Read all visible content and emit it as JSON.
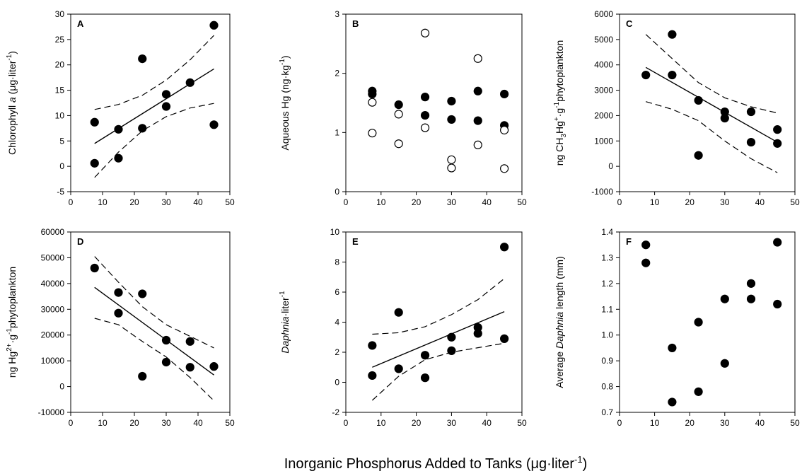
{
  "figure": {
    "xlabel_text": "Inorganic Phosphorus Added to Tanks (μg·liter",
    "xlabel_sup": "-1",
    "xlabel_close": ")"
  },
  "chart_data": [
    {
      "letter": "A",
      "type": "scatter",
      "ylabel": [
        {
          "t": "Chlorophyll "
        },
        {
          "t": "a",
          "italic": true
        },
        {
          "t": " (μg·liter"
        },
        {
          "t": "-1",
          "sup": true
        },
        {
          "t": ")"
        }
      ],
      "xlim": [
        0,
        50
      ],
      "ylim": [
        -5,
        30
      ],
      "xticks": [
        0,
        10,
        20,
        30,
        40,
        50
      ],
      "yticks": [
        -5,
        0,
        5,
        10,
        15,
        20,
        25,
        30
      ],
      "series": [
        {
          "marker": "filled",
          "points": [
            [
              7.5,
              8.7
            ],
            [
              7.5,
              0.6
            ],
            [
              15,
              7.3
            ],
            [
              15,
              1.6
            ],
            [
              22.5,
              21.2
            ],
            [
              22.5,
              7.5
            ],
            [
              30,
              14.2
            ],
            [
              30,
              11.8
            ],
            [
              37.5,
              16.5
            ],
            [
              45,
              27.8
            ],
            [
              45,
              8.2
            ]
          ]
        }
      ],
      "fit": {
        "x": [
          7.5,
          45
        ],
        "y": [
          4.5,
          19.2
        ]
      },
      "ci_upper": {
        "x": [
          7.5,
          15,
          22.5,
          30,
          37.5,
          45
        ],
        "y": [
          11.2,
          12.2,
          14.0,
          17.0,
          21.0,
          25.8
        ]
      },
      "ci_lower": {
        "x": [
          7.5,
          15,
          22.5,
          30,
          37.5,
          45
        ],
        "y": [
          -2.2,
          2.8,
          7.0,
          9.8,
          11.5,
          12.4
        ]
      }
    },
    {
      "letter": "B",
      "type": "scatter",
      "ylabel": [
        {
          "t": "Aqueous Hg (ng·kg"
        },
        {
          "t": "-1",
          "sup": true
        },
        {
          "t": ")"
        }
      ],
      "xlim": [
        0,
        50
      ],
      "ylim": [
        0,
        3
      ],
      "xticks": [
        0,
        10,
        20,
        30,
        40,
        50
      ],
      "yticks": [
        0,
        1,
        2,
        3
      ],
      "series": [
        {
          "marker": "filled",
          "points": [
            [
              7.5,
              1.7
            ],
            [
              7.5,
              1.65
            ],
            [
              15,
              1.47
            ],
            [
              22.5,
              1.6
            ],
            [
              22.5,
              1.29
            ],
            [
              30,
              1.53
            ],
            [
              30,
              1.22
            ],
            [
              37.5,
              1.7
            ],
            [
              37.5,
              1.2
            ],
            [
              45,
              1.65
            ],
            [
              45,
              1.12
            ]
          ]
        },
        {
          "marker": "open",
          "points": [
            [
              7.5,
              1.51
            ],
            [
              7.5,
              0.99
            ],
            [
              15,
              1.31
            ],
            [
              15,
              0.81
            ],
            [
              22.5,
              2.68
            ],
            [
              22.5,
              1.08
            ],
            [
              30,
              0.54
            ],
            [
              30,
              0.4
            ],
            [
              37.5,
              2.25
            ],
            [
              37.5,
              0.79
            ],
            [
              45,
              1.04
            ],
            [
              45,
              0.39
            ]
          ]
        }
      ]
    },
    {
      "letter": "C",
      "type": "scatter",
      "ylabel": [
        {
          "t": "ng CH"
        },
        {
          "t": "3",
          "sub": true
        },
        {
          "t": "Hg"
        },
        {
          "t": "+",
          "sup": true
        },
        {
          "t": "·g"
        },
        {
          "t": "-1",
          "sup": true
        },
        {
          "t": "phytoplankton"
        }
      ],
      "xlim": [
        0,
        50
      ],
      "ylim": [
        -1000,
        6000
      ],
      "xticks": [
        0,
        10,
        20,
        30,
        40,
        50
      ],
      "yticks": [
        -1000,
        0,
        1000,
        2000,
        3000,
        4000,
        5000,
        6000
      ],
      "series": [
        {
          "marker": "filled",
          "points": [
            [
              7.5,
              3600
            ],
            [
              15,
              5200
            ],
            [
              15,
              3600
            ],
            [
              22.5,
              2600
            ],
            [
              22.5,
              430
            ],
            [
              30,
              2150
            ],
            [
              30,
              1900
            ],
            [
              37.5,
              2150
            ],
            [
              37.5,
              950
            ],
            [
              45,
              1450
            ],
            [
              45,
              900
            ]
          ]
        }
      ],
      "fit": {
        "x": [
          7.5,
          45
        ],
        "y": [
          3900,
          950
        ]
      },
      "ci_upper": {
        "x": [
          7.5,
          15,
          22.5,
          30,
          37.5,
          45
        ],
        "y": [
          5200,
          4250,
          3300,
          2700,
          2350,
          2100
        ]
      },
      "ci_lower": {
        "x": [
          7.5,
          15,
          22.5,
          30,
          37.5,
          45
        ],
        "y": [
          2550,
          2250,
          1800,
          1000,
          300,
          -250
        ]
      }
    },
    {
      "letter": "D",
      "type": "scatter",
      "ylabel": [
        {
          "t": "ng Hg"
        },
        {
          "t": "2+",
          "sup": true
        },
        {
          "t": "·g"
        },
        {
          "t": "-1",
          "sup": true
        },
        {
          "t": "phytoplankton"
        }
      ],
      "xlim": [
        0,
        50
      ],
      "ylim": [
        -10000,
        60000
      ],
      "xticks": [
        0,
        10,
        20,
        30,
        40,
        50
      ],
      "yticks": [
        -10000,
        0,
        10000,
        20000,
        30000,
        40000,
        50000,
        60000
      ],
      "series": [
        {
          "marker": "filled",
          "points": [
            [
              7.5,
              46000
            ],
            [
              15,
              36500
            ],
            [
              15,
              28500
            ],
            [
              22.5,
              36000
            ],
            [
              22.5,
              4000
            ],
            [
              30,
              18000
            ],
            [
              30,
              9500
            ],
            [
              37.5,
              17500
            ],
            [
              37.5,
              7500
            ],
            [
              45,
              7800
            ]
          ]
        }
      ],
      "fit": {
        "x": [
          7.5,
          45
        ],
        "y": [
          38500,
          4500
        ]
      },
      "ci_upper": {
        "x": [
          7.5,
          15,
          22.5,
          30,
          37.5,
          45
        ],
        "y": [
          50500,
          40500,
          31000,
          24000,
          19500,
          15000
        ]
      },
      "ci_lower": {
        "x": [
          7.5,
          15,
          22.5,
          30,
          37.5,
          45
        ],
        "y": [
          26500,
          24000,
          17500,
          11500,
          3500,
          -5500
        ]
      }
    },
    {
      "letter": "E",
      "type": "scatter",
      "ylabel": [
        {
          "t": "Daphnia",
          "italic": true
        },
        {
          "t": "·liter"
        },
        {
          "t": "-1",
          "sup": true
        }
      ],
      "xlim": [
        0,
        50
      ],
      "ylim": [
        -2,
        10
      ],
      "xticks": [
        0,
        10,
        20,
        30,
        40,
        50
      ],
      "yticks": [
        -2,
        0,
        2,
        4,
        6,
        8,
        10
      ],
      "series": [
        {
          "marker": "filled",
          "points": [
            [
              7.5,
              2.45
            ],
            [
              7.5,
              0.45
            ],
            [
              15,
              4.65
            ],
            [
              15,
              0.9
            ],
            [
              22.5,
              1.8
            ],
            [
              22.5,
              0.3
            ],
            [
              30,
              3.0
            ],
            [
              30,
              2.1
            ],
            [
              37.5,
              3.65
            ],
            [
              37.5,
              3.25
            ],
            [
              45,
              9.0
            ],
            [
              45,
              2.9
            ]
          ]
        }
      ],
      "fit": {
        "x": [
          7.5,
          45
        ],
        "y": [
          1.0,
          4.7
        ]
      },
      "ci_upper": {
        "x": [
          7.5,
          15,
          22.5,
          30,
          37.5,
          45
        ],
        "y": [
          3.2,
          3.3,
          3.7,
          4.5,
          5.5,
          6.9
        ]
      },
      "ci_lower": {
        "x": [
          7.5,
          15,
          22.5,
          30,
          37.5,
          45
        ],
        "y": [
          -1.2,
          0.4,
          1.5,
          2.0,
          2.3,
          2.6
        ]
      }
    },
    {
      "letter": "F",
      "type": "scatter",
      "ylabel": [
        {
          "t": "Average "
        },
        {
          "t": "Daphnia",
          "italic": true
        },
        {
          "t": " length (mm)"
        }
      ],
      "xlim": [
        0,
        50
      ],
      "ylim": [
        0.7,
        1.4
      ],
      "xticks": [
        0,
        10,
        20,
        30,
        40,
        50
      ],
      "yticks": [
        0.7,
        0.8,
        0.9,
        1.0,
        1.1,
        1.2,
        1.3,
        1.4
      ],
      "ytick_decimals": 1,
      "series": [
        {
          "marker": "filled",
          "points": [
            [
              7.5,
              1.35
            ],
            [
              7.5,
              1.28
            ],
            [
              15,
              0.95
            ],
            [
              15,
              0.74
            ],
            [
              22.5,
              1.05
            ],
            [
              22.5,
              0.78
            ],
            [
              30,
              1.14
            ],
            [
              30,
              0.89
            ],
            [
              37.5,
              1.2
            ],
            [
              37.5,
              1.14
            ],
            [
              45,
              1.36
            ],
            [
              45,
              1.12
            ]
          ]
        }
      ]
    }
  ]
}
